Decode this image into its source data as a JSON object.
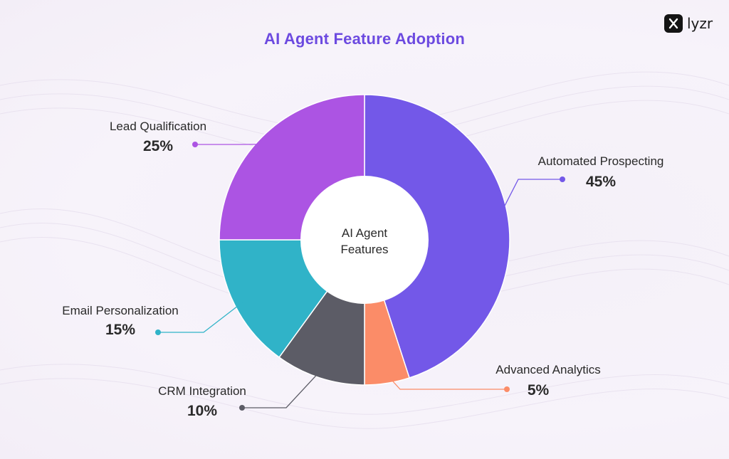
{
  "brand": {
    "name": "lyzr"
  },
  "chart_data": {
    "type": "pie",
    "title": "AI Agent Feature Adoption",
    "center_label": [
      "AI Agent",
      "Features"
    ],
    "unit": "%",
    "slices": [
      {
        "label": "Automated Prospecting",
        "value": 45,
        "display": "45%",
        "color": "#7358e8"
      },
      {
        "label": "Advanced Analytics",
        "value": 5,
        "display": "5%",
        "color": "#fb8c68"
      },
      {
        "label": "CRM Integration",
        "value": 10,
        "display": "10%",
        "color": "#5c5c66"
      },
      {
        "label": "Email Personalization",
        "value": 15,
        "display": "15%",
        "color": "#30b3c8"
      },
      {
        "label": "Lead Qualification",
        "value": 25,
        "display": "25%",
        "color": "#ac54e3"
      }
    ]
  }
}
